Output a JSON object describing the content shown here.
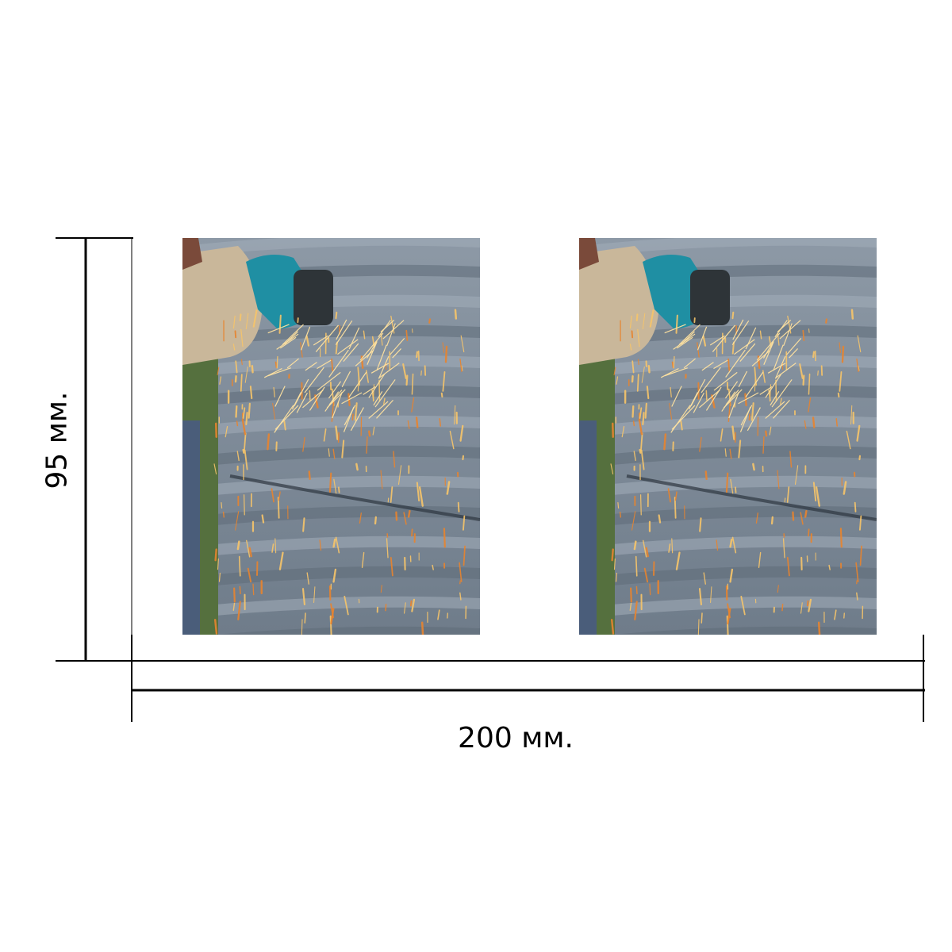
{
  "product": {
    "panels": [
      {
        "name": "left",
        "image": "angle-grinder-sparks-on-corrugated-metal"
      },
      {
        "name": "right",
        "image": "angle-grinder-sparks-on-corrugated-metal"
      }
    ]
  },
  "dimensions": {
    "height_label": "95 мм.",
    "width_label": "200 мм."
  },
  "colors": {
    "background": "#ffffff",
    "dimension_lines": "#000000",
    "metal": "#7b8897",
    "sparks": "#f5b45a",
    "grinder": "#1f8fa3",
    "glove": "#c9b79a"
  }
}
